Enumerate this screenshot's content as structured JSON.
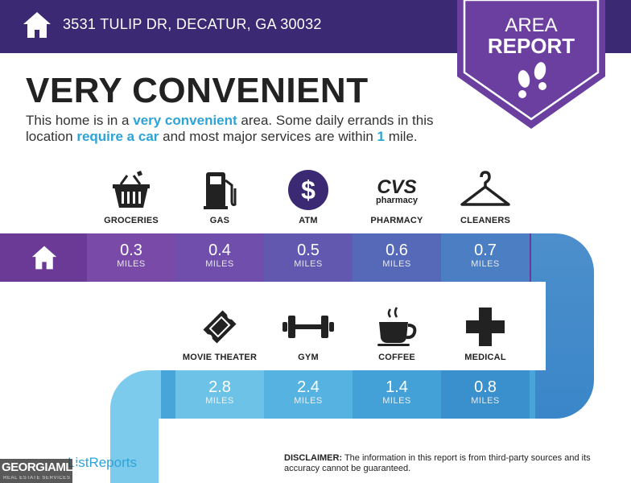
{
  "header": {
    "address": "3531 TULIP DR, DECATUR, GA 30032"
  },
  "badge": {
    "line1": "AREA",
    "line2": "REPORT"
  },
  "headline": "VERY CONVENIENT",
  "description": {
    "p1": "This home is in a ",
    "h1": "very convenient",
    "p2": " area. Some daily errands in this location ",
    "h2": "require a car",
    "p3": " and most major services are within ",
    "h3": "1",
    "p4": " mile."
  },
  "row1": [
    {
      "label": "GROCERIES",
      "icon": "basket-icon",
      "value": "0.3",
      "unit": "MILES"
    },
    {
      "label": "GAS",
      "icon": "gas-pump-icon",
      "value": "0.4",
      "unit": "MILES"
    },
    {
      "label": "ATM",
      "icon": "dollar-icon",
      "value": "0.5",
      "unit": "MILES"
    },
    {
      "label": "PHARMACY",
      "icon": "cvs-pharmacy-logo",
      "icon_text_1": "CVS",
      "icon_text_2": "pharmacy",
      "value": "0.6",
      "unit": "MILES"
    },
    {
      "label": "CLEANERS",
      "icon": "hanger-icon",
      "value": "0.7",
      "unit": "MILES"
    }
  ],
  "row2": [
    {
      "label": "MOVIE THEATER",
      "icon": "ticket-icon",
      "value": "2.8",
      "unit": "MILES"
    },
    {
      "label": "GYM",
      "icon": "dumbbell-icon",
      "value": "2.4",
      "unit": "MILES"
    },
    {
      "label": "COFFEE",
      "icon": "coffee-cup-icon",
      "value": "1.4",
      "unit": "MILES"
    },
    {
      "label": "MEDICAL",
      "icon": "medical-cross-icon",
      "value": "0.8",
      "unit": "MILES"
    }
  ],
  "disclaimer": {
    "bold": "DISCLAIMER:",
    "text": " The information in this report is from third-party sources and its accuracy cannot be guaranteed."
  },
  "watermarks": {
    "listing_reports": "ListReports",
    "georgia_mls": "GEORGIAMLS",
    "georgia_mls_sub": "REAL ESTATE SERVICES"
  },
  "colors": {
    "header_bg": "#3b2a73",
    "badge_purple": "#6b3fa0",
    "accent_blue": "#2ea3d6",
    "row1_gradient": [
      "#6b3a97",
      "#7a4aa8",
      "#6a54ad",
      "#5c69b8",
      "#4f7fc3",
      "#4d8fcc"
    ],
    "row2_gradient": [
      "#6fc4e8",
      "#5ab6e2",
      "#47a5da",
      "#3c93d0",
      "#3a86c8"
    ]
  }
}
